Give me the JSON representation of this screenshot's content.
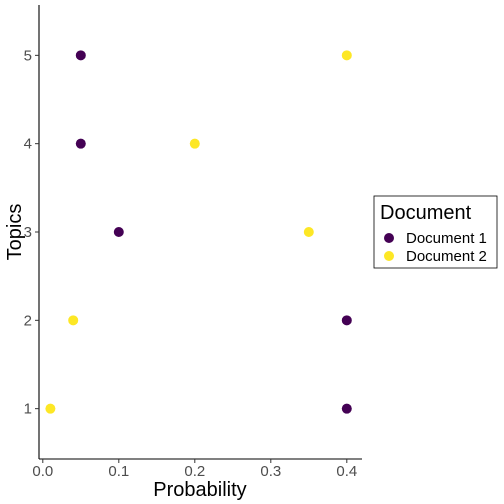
{
  "chart_data": {
    "type": "scatter",
    "xlabel": "Probability",
    "ylabel": "Topics",
    "xlim": [
      -0.005,
      0.42
    ],
    "ylim": [
      0.43,
      5.57
    ],
    "x_ticks": [
      0.0,
      0.1,
      0.2,
      0.3,
      0.4
    ],
    "x_tick_labels": [
      "0.0",
      "0.1",
      "0.2",
      "0.3",
      "0.4"
    ],
    "y_ticks": [
      1,
      2,
      3,
      4,
      5
    ],
    "y_tick_labels": [
      "1",
      "2",
      "3",
      "4",
      "5"
    ],
    "grid": false,
    "legend": {
      "title": "Document",
      "placement": "right",
      "entries": [
        "Document 1",
        "Document 2"
      ]
    },
    "series": [
      {
        "name": "Document 1",
        "color": "#440154",
        "points": [
          {
            "x": 0.4,
            "y": 1
          },
          {
            "x": 0.4,
            "y": 2
          },
          {
            "x": 0.1,
            "y": 3
          },
          {
            "x": 0.05,
            "y": 4
          },
          {
            "x": 0.05,
            "y": 5
          }
        ]
      },
      {
        "name": "Document 2",
        "color": "#FDE725",
        "points": [
          {
            "x": 0.01,
            "y": 1
          },
          {
            "x": 0.04,
            "y": 2
          },
          {
            "x": 0.35,
            "y": 3
          },
          {
            "x": 0.2,
            "y": 4
          },
          {
            "x": 0.4,
            "y": 5
          }
        ]
      }
    ]
  }
}
